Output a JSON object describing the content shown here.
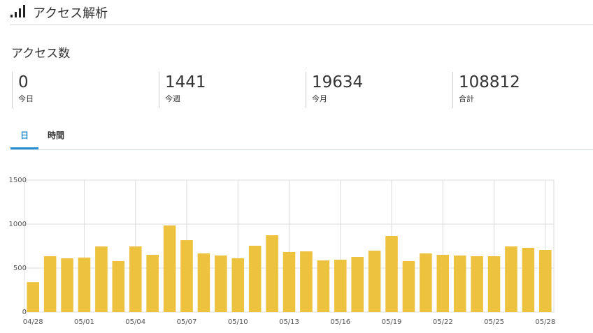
{
  "header": {
    "title": "アクセス解析"
  },
  "section": {
    "title": "アクセス数"
  },
  "stats": [
    {
      "value": 0,
      "label": "今日"
    },
    {
      "value": 1441,
      "label": "今週"
    },
    {
      "value": 19634,
      "label": "今月"
    },
    {
      "value": 108812,
      "label": "合計"
    }
  ],
  "tabs": [
    "日",
    "時間"
  ],
  "chart_data": {
    "type": "bar",
    "categories": [
      "04/28",
      null,
      null,
      "05/01",
      null,
      null,
      "05/04",
      null,
      null,
      "05/07",
      null,
      null,
      "05/10",
      null,
      null,
      "05/13",
      null,
      null,
      "05/16",
      null,
      null,
      "05/19",
      null,
      null,
      "05/22",
      null,
      null,
      "05/25",
      null,
      null,
      "05/28"
    ],
    "values": [
      340,
      635,
      611,
      620,
      746,
      580,
      746,
      651,
      984,
      817,
      667,
      643,
      611,
      754,
      873,
      683,
      690,
      587,
      595,
      627,
      698,
      865,
      580,
      667,
      651,
      643,
      635,
      635,
      746,
      730,
      706
    ],
    "color": "#ecc23e",
    "ylim": [
      0,
      1500
    ],
    "yticks": [
      0,
      500,
      1000,
      1500
    ],
    "grid": true
  }
}
